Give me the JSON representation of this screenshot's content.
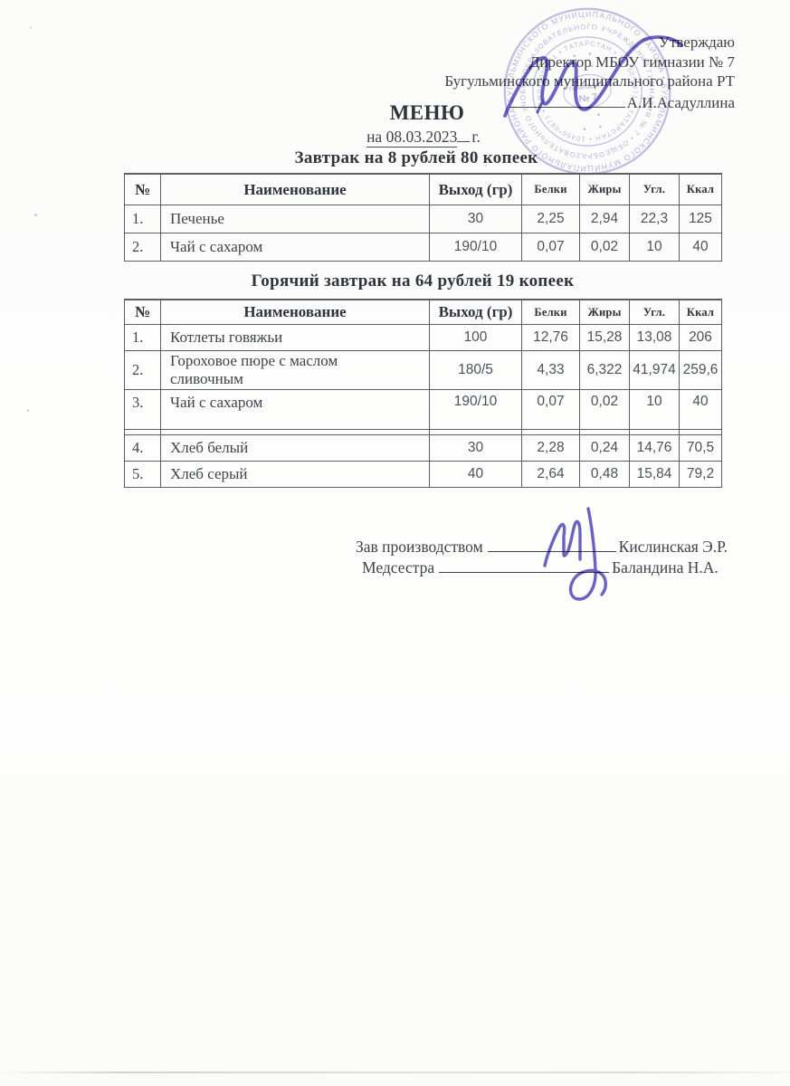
{
  "document": {
    "approval": {
      "line1": "Утверждаю",
      "line2": "Директор МБОУ гимназии № 7",
      "line3": "Бугульминского муниципального района РТ",
      "signatory_name": "А.И.Асадуллина"
    },
    "title": "МЕНЮ",
    "date": {
      "underlined": "на 08.03.2023",
      "suffix": "г."
    },
    "stamp": {
      "outer_ring_text": "БУГУЛЬМИНСКОГО МУНИЦИПАЛЬНОГО РАЙОНА • ",
      "middle_ring_text": "ОБЩЕОБРАЗОВАТЕЛЬНОГО УЧРЕЖДЕНИЯ ГИМНАЗИЯ № 7 • ",
      "inner_ring_text": "10450*0871 • ТАТАРСТАН • ",
      "center_line1": "гимназия",
      "center_line2": "№ 7",
      "color": "#9a8ed0"
    },
    "sections": [
      {
        "heading": "Завтрак на 8 рублей 80 копеек",
        "table": {
          "headers": [
            "№",
            "Наименование",
            "Выход (гр)",
            "Белки",
            "Жиры",
            "Угл.",
            "Ккал"
          ],
          "rows": [
            [
              "1.",
              "Печенье",
              "30",
              "2,25",
              "2,94",
              "22,3",
              "125"
            ],
            [
              "2.",
              "Чай с сахаром",
              "190/10",
              "0,07",
              "0,02",
              "10",
              "40"
            ]
          ]
        }
      },
      {
        "heading": "Горячий завтрак на 64 рублей 19 копеек",
        "table": {
          "headers": [
            "№",
            "Наименование",
            "Выход (гр)",
            "Белки",
            "Жиры",
            "Угл.",
            "Ккал"
          ],
          "rows": [
            [
              "1.",
              "Котлеты говяжьи",
              "100",
              "12,76",
              "15,28",
              "13,08",
              "206"
            ],
            [
              "2.",
              "Гороховое пюре с маслом сливочным",
              "180/5",
              "4,33",
              "6,322",
              "41,974",
              "259,6"
            ],
            [
              "3.",
              "Чай с сахаром",
              "190/10",
              "0,07",
              "0,02",
              "10",
              "40"
            ],
            [
              "4.",
              "Хлеб белый",
              "30",
              "2,28",
              "0,24",
              "14,76",
              "70,5"
            ],
            [
              "5.",
              "Хлеб серый",
              "40",
              "2,64",
              "0,48",
              "15,84",
              "79,2"
            ]
          ]
        }
      }
    ],
    "footer": {
      "role1": "Зав производством",
      "name1": "Кислинская Э.Р.",
      "role2": "Медсестра",
      "name2": "Баландина Н.А."
    },
    "ink_color": "#574ebc"
  }
}
